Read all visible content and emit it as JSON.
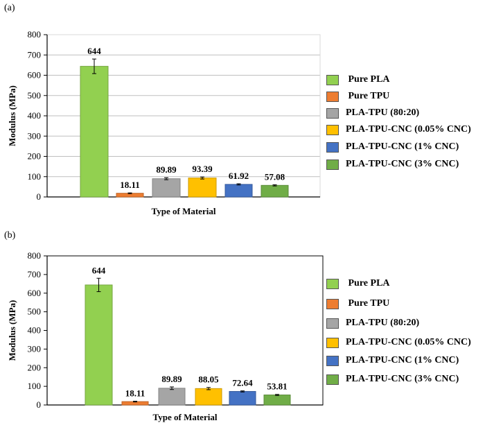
{
  "chart_data": [
    {
      "type": "bar",
      "panel": "(a)",
      "xlabel": "Type of Material",
      "ylabel": "Modulus (MPa)",
      "ylim": [
        0,
        800
      ],
      "yticks": [
        "0",
        "100",
        "200",
        "300",
        "400",
        "500",
        "600",
        "700",
        "800"
      ],
      "grid": true,
      "legend_position": "right",
      "categories": [
        "Pure PLA",
        "Pure TPU",
        "PLA-TPU (80:20)",
        "PLA-TPU-CNC (0.05% CNC)",
        "PLA-TPU-CNC (1% CNC)",
        "PLA-TPU-CNC (3% CNC)"
      ],
      "values": [
        644,
        18.11,
        89.89,
        93.39,
        61.92,
        57.08
      ],
      "value_labels": [
        "644",
        "18.11",
        "89.89",
        "93.39",
        "61.92",
        "57.08"
      ],
      "errors": [
        36,
        2,
        5,
        5,
        3,
        3
      ],
      "colors": [
        "#92d050",
        "#ed7d31",
        "#a5a5a5",
        "#ffc000",
        "#4472c4",
        "#70ad47"
      ]
    },
    {
      "type": "bar",
      "panel": "(b)",
      "xlabel": "Type of Material",
      "ylabel": "Modulus (MPa)",
      "ylim": [
        0,
        800
      ],
      "yticks": [
        "0",
        "100",
        "200",
        "300",
        "400",
        "500",
        "600",
        "700",
        "800"
      ],
      "grid": false,
      "legend_position": "right",
      "categories": [
        "Pure PLA",
        "Pure TPU",
        "PLA-TPU (80:20)",
        "PLA-TPU-CNC (0.05% CNC)",
        "PLA-TPU-CNC (1% CNC)",
        "PLA-TPU-CNC (3% CNC)"
      ],
      "values": [
        644,
        18.11,
        89.89,
        88.05,
        72.64,
        53.81
      ],
      "value_labels": [
        "644",
        "18.11",
        "89.89",
        "88.05",
        "72.64",
        "53.81"
      ],
      "errors": [
        36,
        2,
        7,
        6,
        3,
        3
      ],
      "colors": [
        "#92d050",
        "#ed7d31",
        "#a5a5a5",
        "#ffc000",
        "#4472c4",
        "#70ad47"
      ]
    }
  ]
}
